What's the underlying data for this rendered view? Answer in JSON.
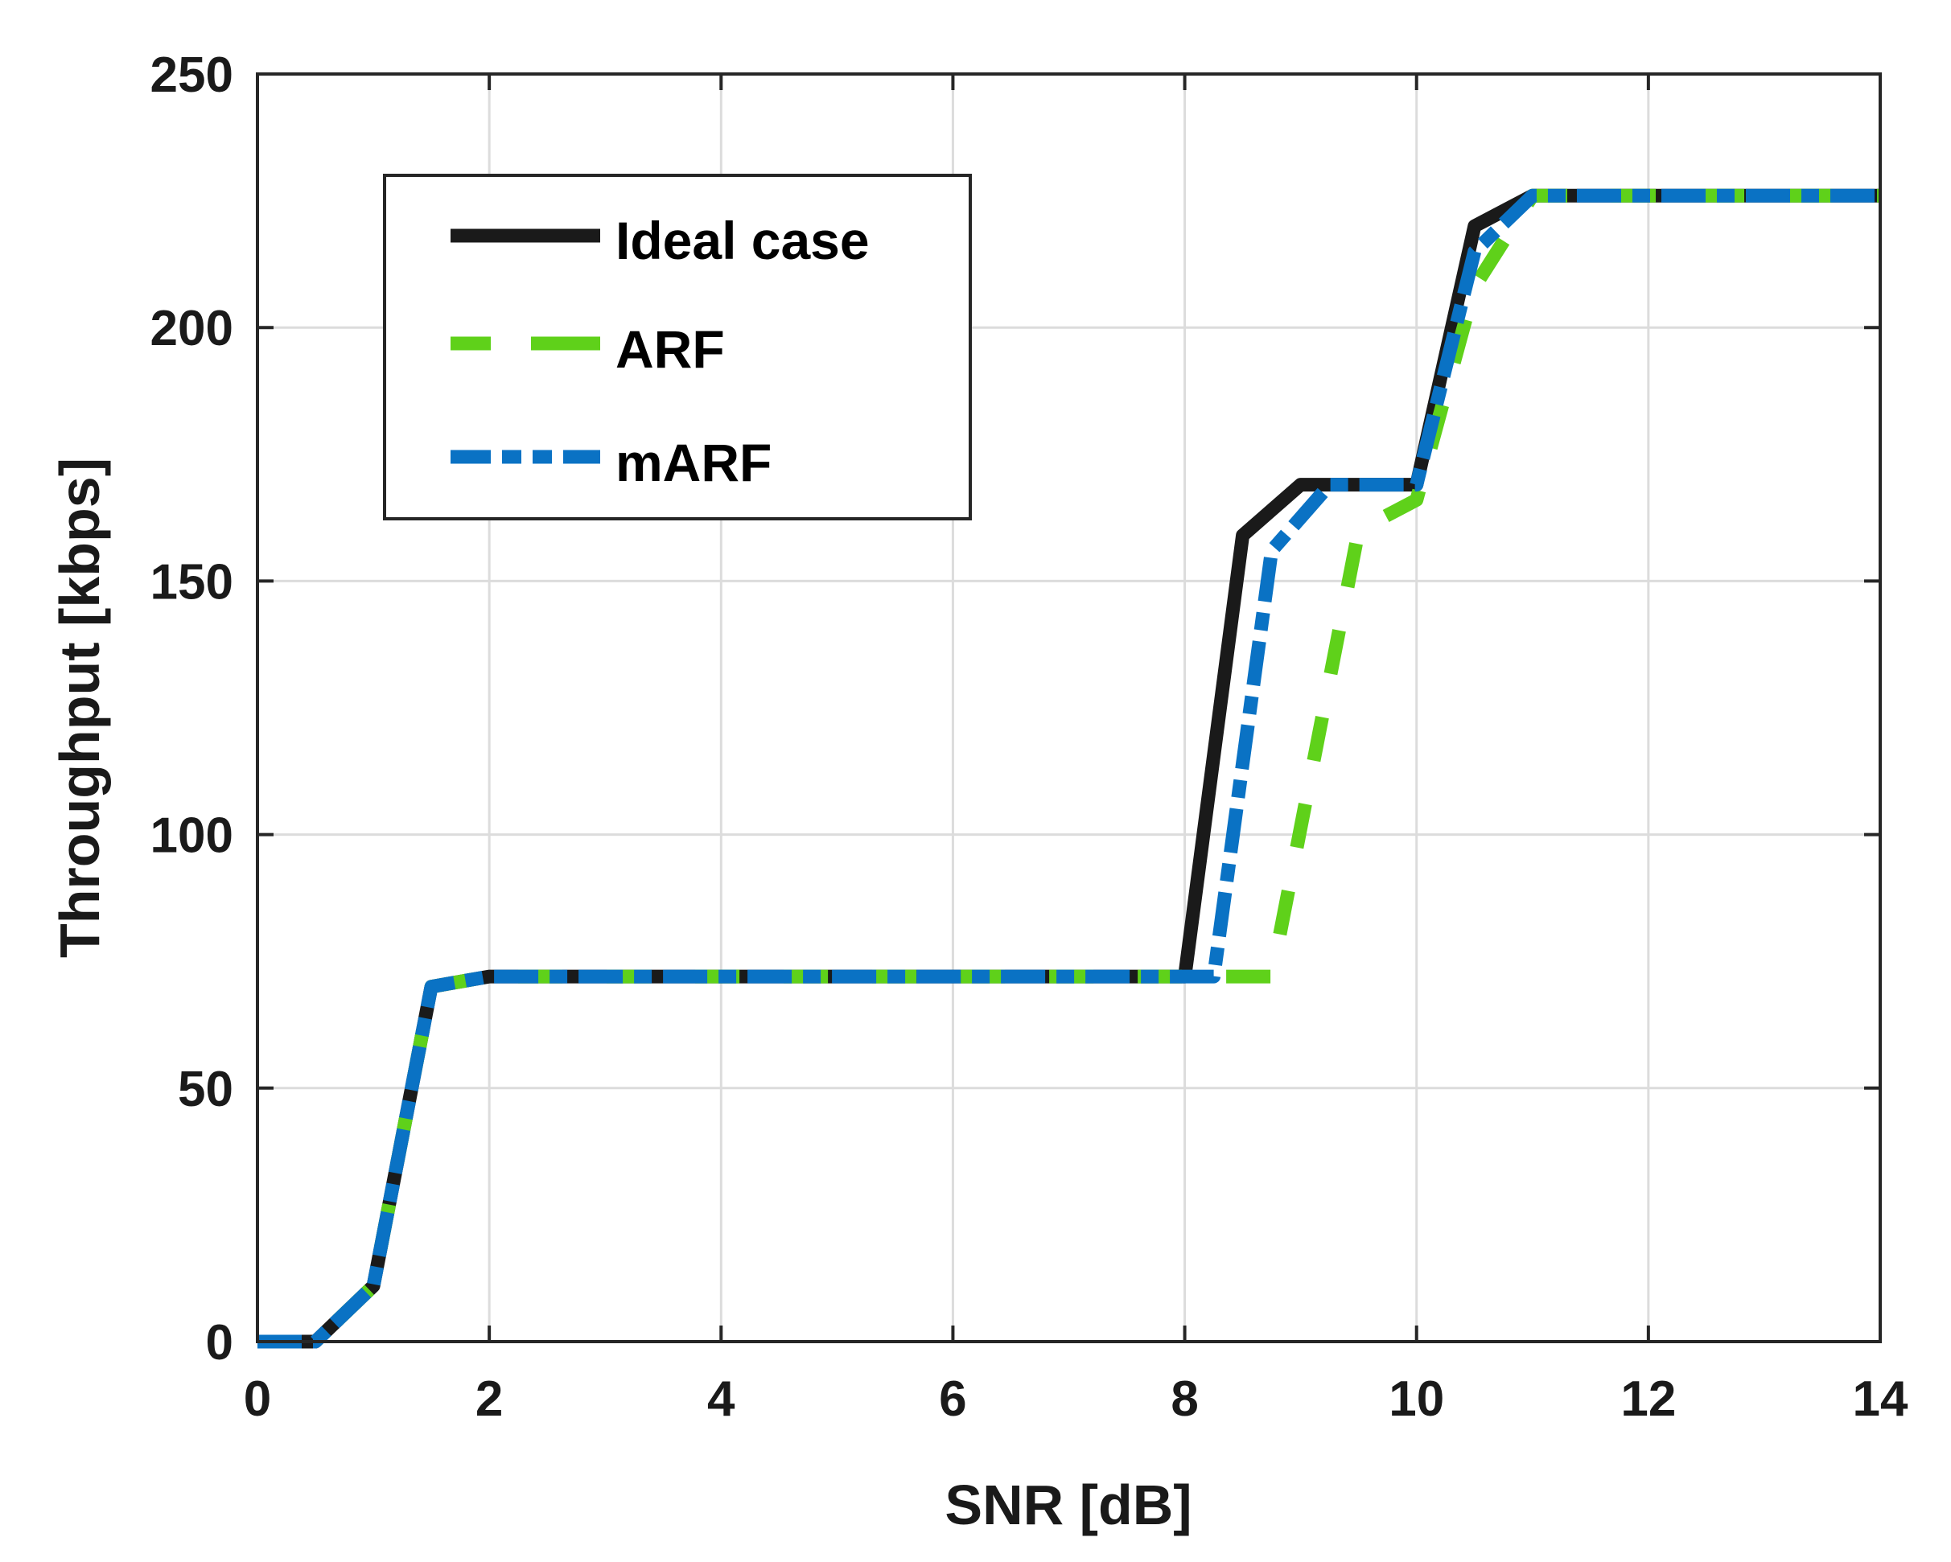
{
  "chart_data": {
    "type": "line",
    "title": "",
    "xlabel": "SNR [dB]",
    "ylabel": "Throughput [kbps]",
    "xlim": [
      0,
      14
    ],
    "ylim": [
      0,
      250
    ],
    "xticks": [
      0,
      2,
      4,
      6,
      8,
      10,
      12,
      14
    ],
    "yticks": [
      0,
      50,
      100,
      150,
      200,
      250
    ],
    "grid": true,
    "legend_position": "upper left (inset)",
    "series": [
      {
        "name": "Ideal case",
        "color": "#1a1a1a",
        "style": "solid",
        "points": [
          [
            0,
            0
          ],
          [
            0.5,
            0
          ],
          [
            1,
            11
          ],
          [
            1.5,
            70
          ],
          [
            2,
            72
          ],
          [
            8,
            72
          ],
          [
            8.5,
            159
          ],
          [
            9,
            169
          ],
          [
            10,
            169
          ],
          [
            10.5,
            220
          ],
          [
            11,
            226
          ],
          [
            14,
            226
          ]
        ]
      },
      {
        "name": "ARF",
        "color": "#5fd11a",
        "style": "dashed",
        "points": [
          [
            0,
            0
          ],
          [
            0.5,
            0
          ],
          [
            1,
            11
          ],
          [
            1.5,
            70
          ],
          [
            2,
            72
          ],
          [
            8.75,
            72
          ],
          [
            9.5,
            160
          ],
          [
            10,
            166
          ],
          [
            10.5,
            208
          ],
          [
            11,
            226
          ],
          [
            14,
            226
          ]
        ]
      },
      {
        "name": "mARF",
        "color": "#0a72c4",
        "style": "dashdot",
        "points": [
          [
            0,
            0
          ],
          [
            0.5,
            0
          ],
          [
            1,
            11
          ],
          [
            1.5,
            70
          ],
          [
            2,
            72
          ],
          [
            8.25,
            72
          ],
          [
            8.75,
            156
          ],
          [
            9.25,
            169
          ],
          [
            10,
            169
          ],
          [
            10.5,
            215
          ],
          [
            11,
            226
          ],
          [
            14,
            226
          ]
        ]
      }
    ]
  },
  "legend": {
    "items": [
      {
        "label": "Ideal case"
      },
      {
        "label": "ARF"
      },
      {
        "label": "mARF"
      }
    ]
  }
}
